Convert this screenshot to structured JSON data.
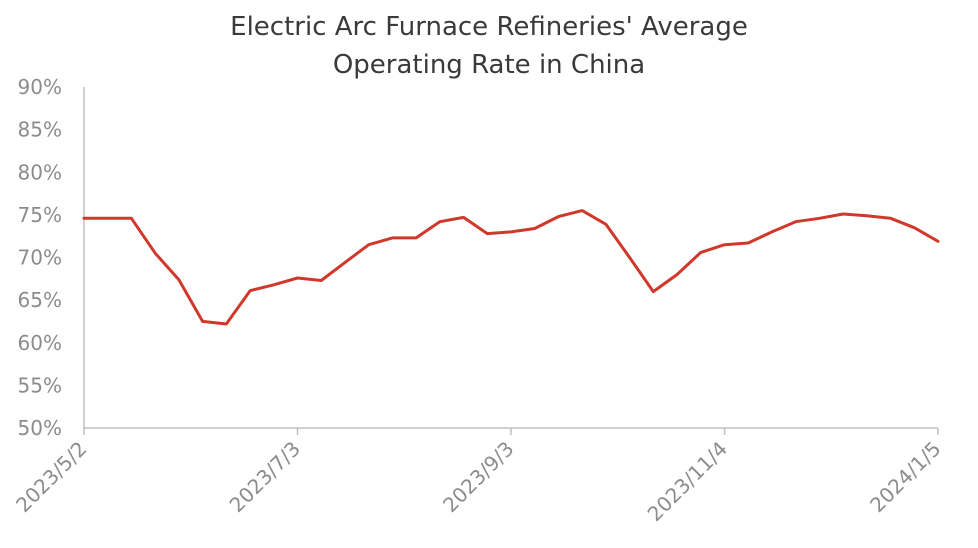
{
  "chart_data": {
    "type": "line",
    "title_lines": [
      "Electric Arc Furnace Refineries' Average",
      "Operating Rate in China"
    ],
    "ylim": [
      50,
      90
    ],
    "y_ticks": [
      "50%",
      "55%",
      "60%",
      "65%",
      "70%",
      "75%",
      "80%",
      "85%",
      "90%"
    ],
    "x_tick_labels": [
      "2023/5/2",
      "2023/7/3",
      "2023/9/3",
      "2023/11/4",
      "2024/1/5"
    ],
    "grid": false,
    "colors": {
      "line": "#d0382b",
      "axis": "#bfbfbf",
      "text": "#8c8c8c",
      "title": "#3a3a3a"
    },
    "series": [
      {
        "x": [
          "2023/5/2",
          "2023/5/9",
          "2023/5/16",
          "2023/5/23",
          "2023/5/30",
          "2023/6/6",
          "2023/6/13",
          "2023/6/20",
          "2023/6/27",
          "2023/7/3",
          "2023/7/10",
          "2023/7/17",
          "2023/7/24",
          "2023/7/31",
          "2023/8/7",
          "2023/8/14",
          "2023/8/21",
          "2023/8/28",
          "2023/9/3",
          "2023/9/10",
          "2023/9/17",
          "2023/9/24",
          "2023/10/1",
          "2023/10/8",
          "2023/10/15",
          "2023/10/22",
          "2023/10/29",
          "2023/11/4",
          "2023/11/11",
          "2023/11/18",
          "2023/11/25",
          "2023/12/2",
          "2023/12/9",
          "2023/12/16",
          "2023/12/23",
          "2023/12/30",
          "2024/1/5"
        ],
        "values": [
          74.6,
          74.6,
          74.6,
          70.5,
          67.4,
          62.5,
          62.2,
          66.1,
          66.8,
          67.6,
          67.3,
          69.4,
          71.5,
          72.3,
          72.3,
          74.2,
          74.7,
          72.8,
          73.0,
          73.4,
          74.8,
          75.5,
          73.9,
          70.0,
          66.0,
          68.0,
          70.6,
          71.5,
          71.7,
          73.0,
          74.2,
          74.6,
          75.1,
          74.9,
          74.6,
          73.5,
          71.9
        ]
      }
    ]
  }
}
